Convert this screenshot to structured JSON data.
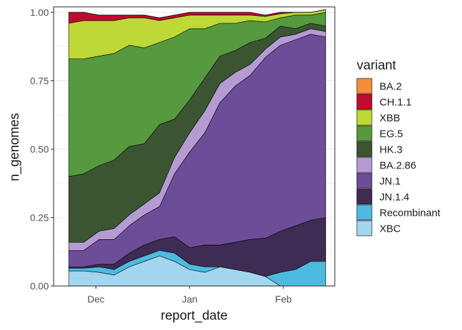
{
  "chart_data": {
    "type": "area",
    "stacked": true,
    "title": "",
    "xlabel": "report_date",
    "ylabel": "n_genomes",
    "ylim": [
      0,
      1.02
    ],
    "x_range": [
      "2023-11-17",
      "2024-02-18"
    ],
    "x_ticks": [
      {
        "date": "2023-12-01",
        "label": "Dec"
      },
      {
        "date": "2024-01-01",
        "label": "Jan"
      },
      {
        "date": "2024-02-01",
        "label": "Feb"
      }
    ],
    "y_ticks": [
      {
        "value": 0,
        "label": "0.00"
      },
      {
        "value": 0.25,
        "label": "0.25"
      },
      {
        "value": 0.5,
        "label": "0.50"
      },
      {
        "value": 0.75,
        "label": "0.75"
      },
      {
        "value": 1,
        "label": "1.00"
      }
    ],
    "grid": true,
    "legend": {
      "title": "variant",
      "position": "right"
    },
    "dates": [
      "2023-11-22",
      "2023-11-27",
      "2023-12-02",
      "2023-12-07",
      "2023-12-12",
      "2023-12-17",
      "2023-12-22",
      "2023-12-27",
      "2024-01-01",
      "2024-01-06",
      "2024-01-11",
      "2024-01-16",
      "2024-01-21",
      "2024-01-26",
      "2024-01-31",
      "2024-02-05",
      "2024-02-10",
      "2024-02-15"
    ],
    "stack_order_bottom_to_top": [
      "XBC",
      "Recombinant",
      "JN.1.4",
      "JN.1",
      "BA.2.86",
      "HK.3",
      "EG.5",
      "XBB",
      "CH.1.1",
      "BA.2"
    ],
    "series": [
      {
        "name": "BA.2",
        "color": "#F58C3C",
        "values": [
          0,
          0,
          0,
          0,
          0,
          0,
          0,
          0,
          0,
          0,
          0,
          0,
          0,
          0,
          0,
          0,
          0,
          0
        ]
      },
      {
        "name": "CH.1.1",
        "color": "#C00A2E",
        "values": [
          0.04,
          0.03,
          0.02,
          0.02,
          0.01,
          0.01,
          0.01,
          0.01,
          0.01,
          0.01,
          0.01,
          0.01,
          0.01,
          0.005,
          0.005,
          0,
          0,
          0
        ]
      },
      {
        "name": "XBB",
        "color": "#BED838",
        "values": [
          0.13,
          0.14,
          0.13,
          0.12,
          0.1,
          0.11,
          0.08,
          0.07,
          0.05,
          0.05,
          0.03,
          0.03,
          0.02,
          0.02,
          0.015,
          0.01,
          0.01,
          0.01
        ]
      },
      {
        "name": "EG.5",
        "color": "#57993E",
        "values": [
          0.43,
          0.42,
          0.4,
          0.39,
          0.37,
          0.35,
          0.3,
          0.3,
          0.26,
          0.18,
          0.12,
          0.1,
          0.08,
          0.06,
          0.03,
          0.05,
          0.03,
          0.05
        ]
      },
      {
        "name": "HK.3",
        "color": "#3B5532",
        "values": [
          0.24,
          0.25,
          0.24,
          0.25,
          0.25,
          0.22,
          0.25,
          0.14,
          0.12,
          0.12,
          0.1,
          0.08,
          0.08,
          0.04,
          0.04,
          0.02,
          0.02,
          0.02
        ]
      },
      {
        "name": "BA.2.86",
        "color": "#B49BD2",
        "values": [
          0.03,
          0.03,
          0.03,
          0.04,
          0.04,
          0.04,
          0.05,
          0.06,
          0.07,
          0.08,
          0.07,
          0.05,
          0.04,
          0.03,
          0.03,
          0.02,
          0.02,
          0.02
        ]
      },
      {
        "name": "JN.1",
        "color": "#6E4D98",
        "values": [
          0.06,
          0.06,
          0.09,
          0.09,
          0.1,
          0.11,
          0.12,
          0.23,
          0.35,
          0.41,
          0.52,
          0.57,
          0.6,
          0.66,
          0.68,
          0.68,
          0.68,
          0.66
        ]
      },
      {
        "name": "JN.1.4",
        "color": "#3E2C55",
        "values": [
          0.005,
          0.005,
          0.01,
          0.02,
          0.03,
          0.04,
          0.04,
          0.06,
          0.06,
          0.08,
          0.08,
          0.1,
          0.12,
          0.14,
          0.15,
          0.16,
          0.15,
          0.16
        ]
      },
      {
        "name": "Recombinant",
        "color": "#4EBAE0",
        "values": [
          0.01,
          0.01,
          0.02,
          0.02,
          0.02,
          0.02,
          0.02,
          0.03,
          0.02,
          0.02,
          0,
          0,
          0,
          0,
          0.05,
          0.06,
          0.09,
          0.09
        ]
      },
      {
        "name": "XBC",
        "color": "#A2D6EE",
        "values": [
          0.055,
          0.055,
          0.05,
          0.04,
          0.07,
          0.09,
          0.11,
          0.09,
          0.06,
          0.05,
          0.07,
          0.06,
          0.05,
          0.035,
          0,
          0,
          0,
          0
        ]
      }
    ]
  }
}
